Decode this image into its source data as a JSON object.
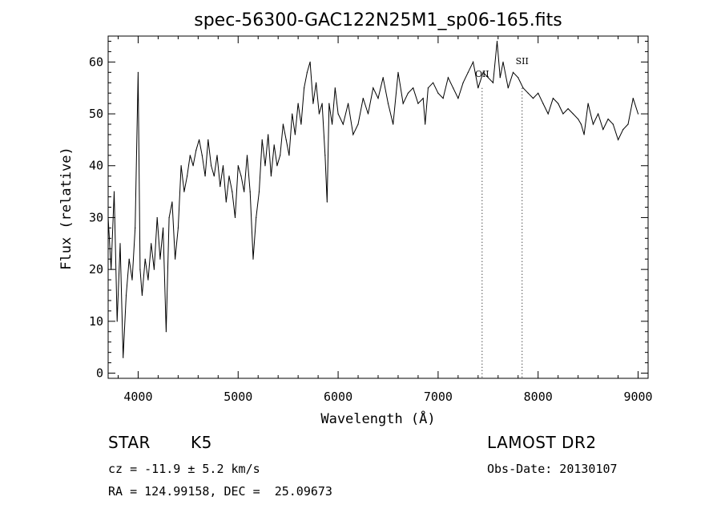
{
  "chart_data": {
    "type": "line",
    "title": "spec-56300-GAC122N25M1_sp06-165.fits",
    "xlabel": "Wavelength (Å)",
    "ylabel": "Flux (relative)",
    "xlim": [
      3700,
      9100
    ],
    "ylim": [
      -1,
      65
    ],
    "xticks": [
      4000,
      5000,
      6000,
      7000,
      8000,
      9000
    ],
    "yticks": [
      0,
      10,
      20,
      30,
      40,
      50,
      60
    ],
    "grid": false,
    "line_markers": [
      {
        "label": "OII",
        "x": 7440
      },
      {
        "label": "SII",
        "x": 7840
      }
    ],
    "series": [
      {
        "x": [
          3700,
          3730,
          3760,
          3790,
          3820,
          3850,
          3880,
          3910,
          3940,
          3970,
          4000,
          4020,
          4040,
          4070,
          4100,
          4130,
          4160,
          4190,
          4220,
          4250,
          4280,
          4310,
          4340,
          4370,
          4400,
          4430,
          4460,
          4490,
          4520,
          4550,
          4580,
          4610,
          4640,
          4670,
          4700,
          4730,
          4760,
          4790,
          4820,
          4850,
          4880,
          4910,
          4940,
          4970,
          5000,
          5030,
          5060,
          5090,
          5120,
          5150,
          5180,
          5210,
          5240,
          5270,
          5300,
          5330,
          5360,
          5390,
          5420,
          5450,
          5480,
          5510,
          5540,
          5570,
          5600,
          5630,
          5660,
          5690,
          5720,
          5750,
          5780,
          5810,
          5840,
          5870,
          5890,
          5910,
          5940,
          5970,
          6000,
          6050,
          6100,
          6150,
          6200,
          6250,
          6300,
          6350,
          6400,
          6450,
          6500,
          6550,
          6600,
          6650,
          6700,
          6750,
          6800,
          6850,
          6870,
          6900,
          6950,
          7000,
          7050,
          7100,
          7150,
          7200,
          7250,
          7300,
          7350,
          7400,
          7450,
          7500,
          7550,
          7590,
          7620,
          7650,
          7700,
          7750,
          7800,
          7850,
          7900,
          7950,
          8000,
          8050,
          8100,
          8150,
          8200,
          8250,
          8300,
          8350,
          8400,
          8430,
          8460,
          8500,
          8550,
          8600,
          8650,
          8700,
          8750,
          8800,
          8850,
          8900,
          8950,
          9000
        ],
        "y": [
          30,
          20,
          35,
          10,
          25,
          3,
          15,
          22,
          18,
          28,
          58,
          20,
          15,
          22,
          18,
          25,
          20,
          30,
          22,
          28,
          8,
          30,
          33,
          22,
          28,
          40,
          35,
          38,
          42,
          40,
          43,
          45,
          42,
          38,
          45,
          40,
          38,
          42,
          36,
          40,
          33,
          38,
          35,
          30,
          40,
          38,
          35,
          42,
          35,
          22,
          30,
          35,
          45,
          40,
          46,
          38,
          44,
          40,
          42,
          48,
          45,
          42,
          50,
          46,
          52,
          48,
          55,
          58,
          60,
          52,
          56,
          50,
          52,
          42,
          33,
          52,
          48,
          55,
          50,
          48,
          52,
          46,
          48,
          53,
          50,
          55,
          53,
          57,
          52,
          48,
          58,
          52,
          54,
          55,
          52,
          53,
          48,
          55,
          56,
          54,
          53,
          57,
          55,
          53,
          56,
          58,
          60,
          55,
          58,
          57,
          56,
          64,
          57,
          60,
          55,
          58,
          57,
          55,
          54,
          53,
          54,
          52,
          50,
          53,
          52,
          50,
          51,
          50,
          49,
          48,
          46,
          52,
          48,
          50,
          47,
          49,
          48,
          45,
          47,
          48,
          53,
          50
        ]
      }
    ]
  },
  "info": {
    "object_class": "STAR",
    "subclass": "K5",
    "redshift": "cz = -11.9 ± 5.2 km/s",
    "coords": "RA = 124.99158, DEC =  25.09673",
    "survey": "LAMOST DR2",
    "obs_date": "Obs-Date: 20130107"
  }
}
